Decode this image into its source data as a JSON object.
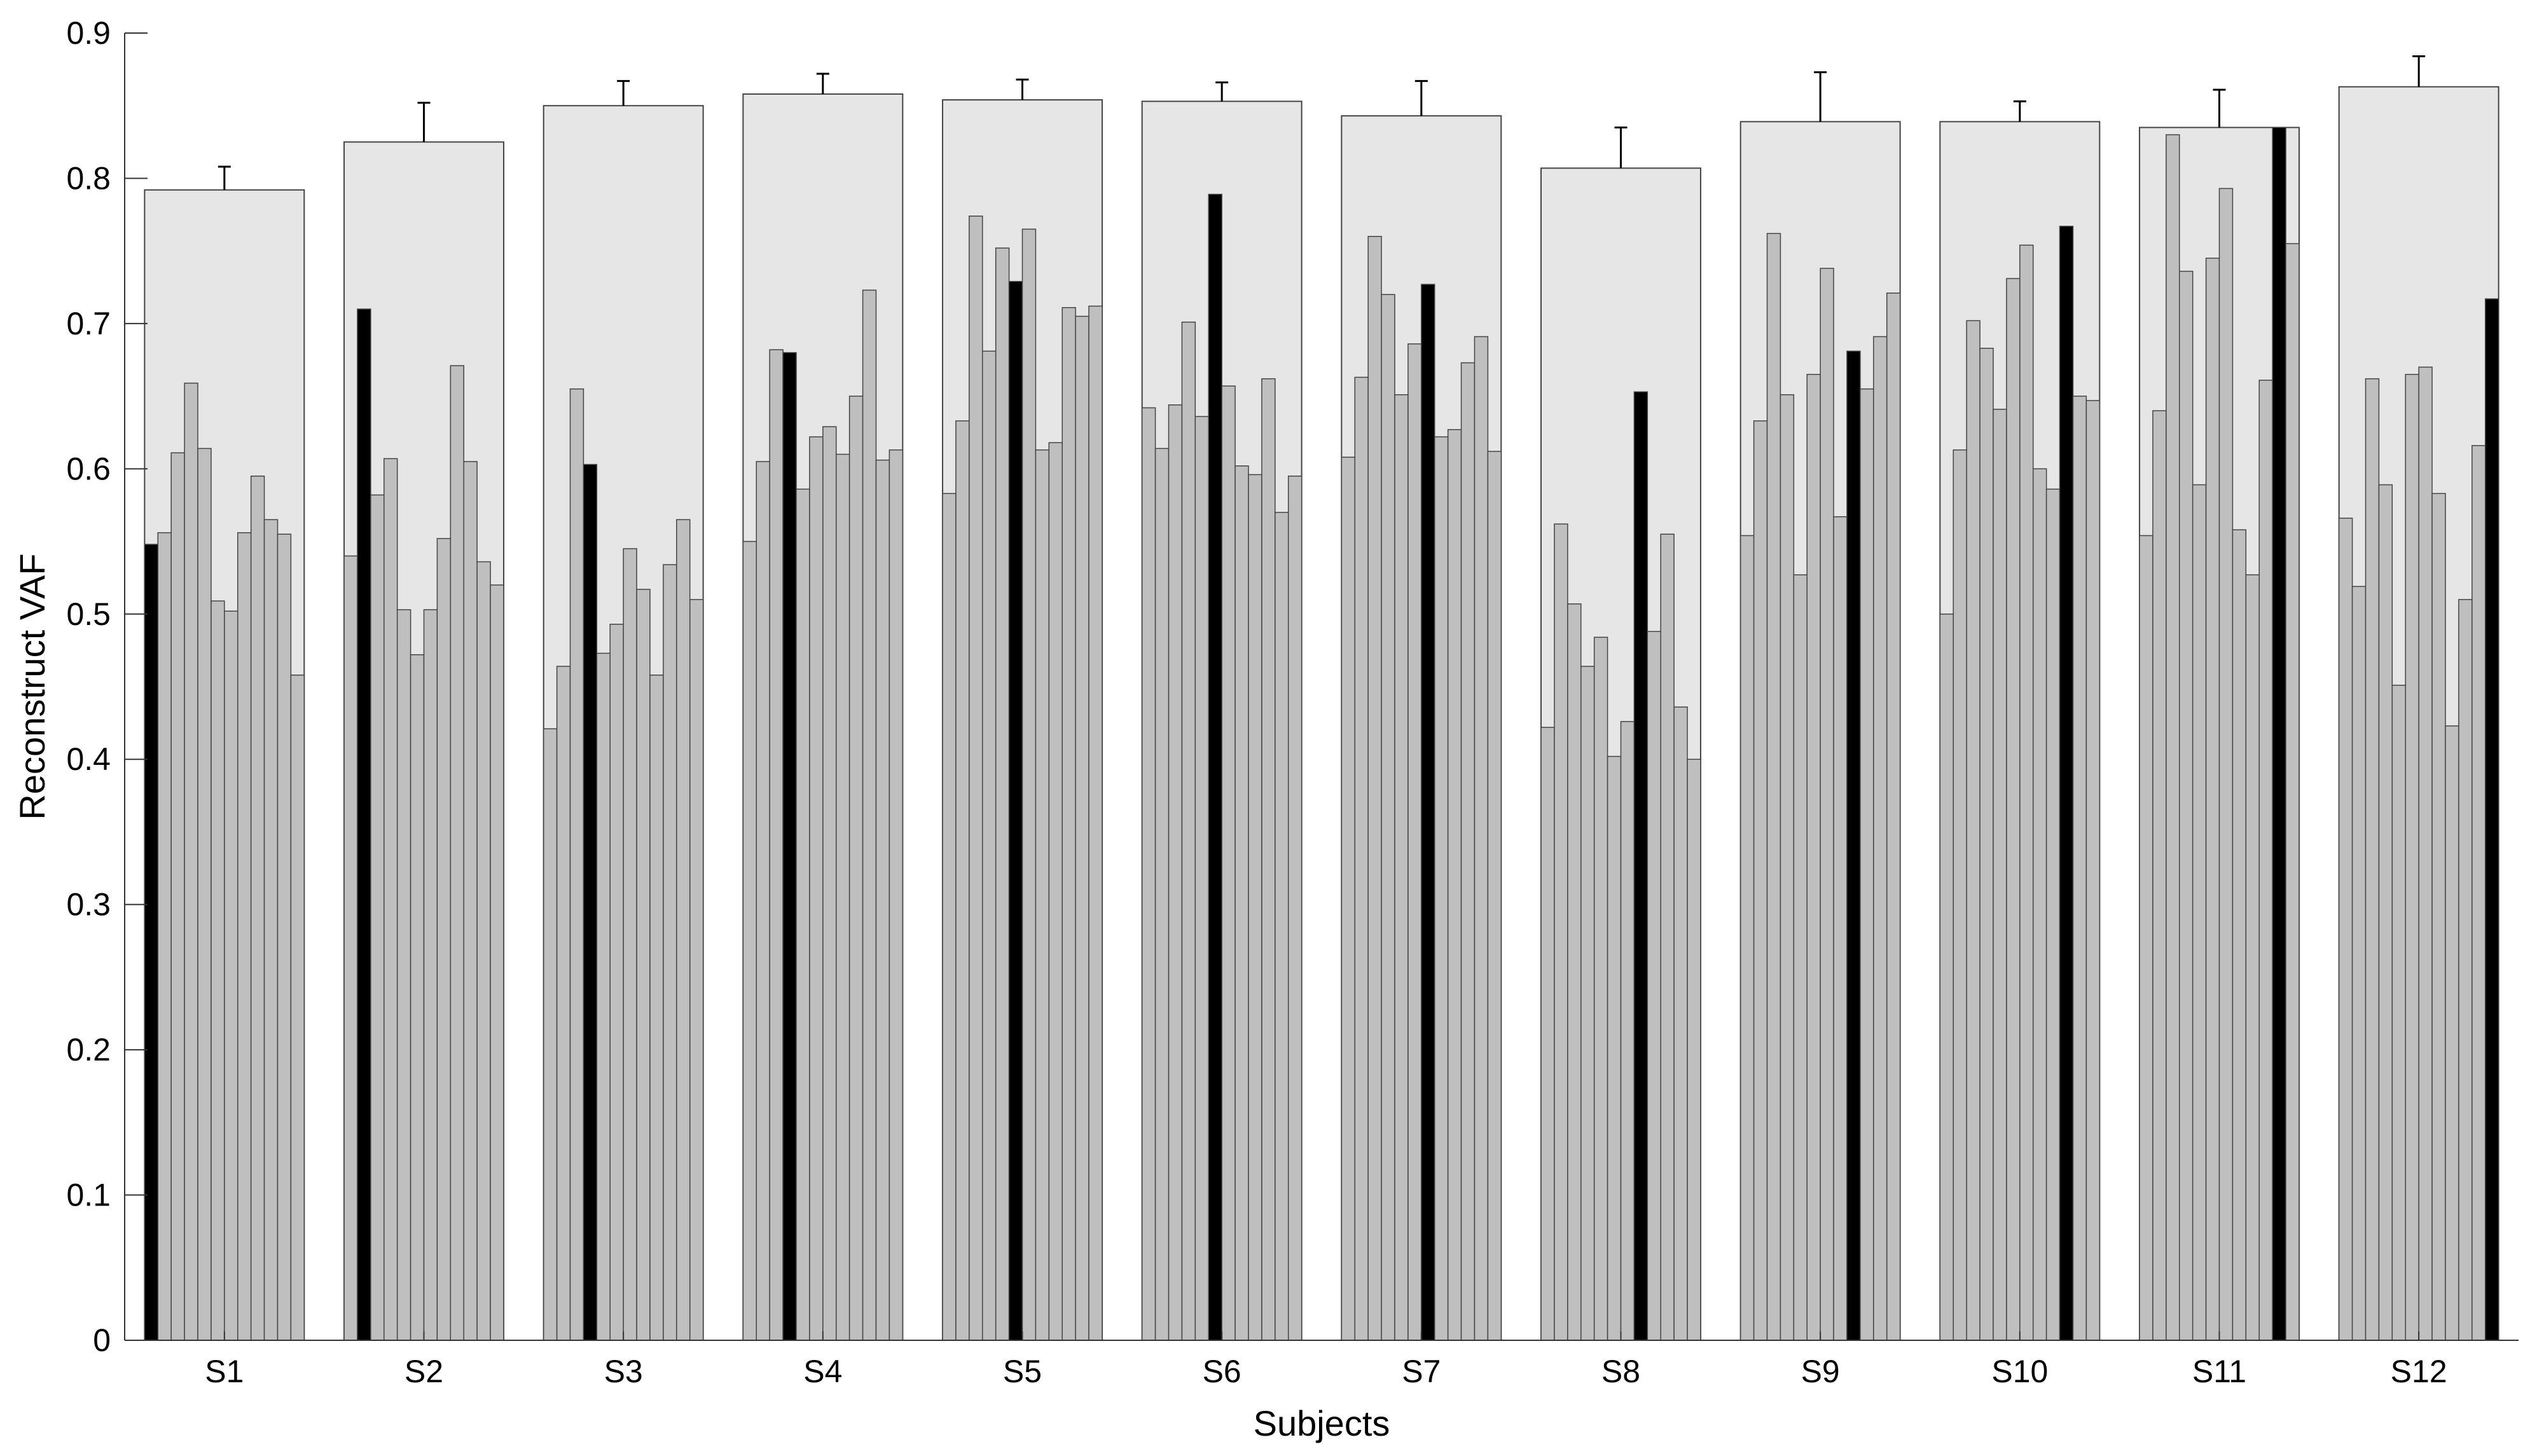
{
  "chart_data": {
    "type": "bar",
    "xlabel": "Subjects",
    "ylabel": "Reconstruct VAF",
    "ylim": [
      0,
      0.9
    ],
    "yticks": [
      "0",
      "0.1",
      "0.2",
      "0.3",
      "0.4",
      "0.5",
      "0.6",
      "0.7",
      "0.8",
      "0.9"
    ],
    "grid": false,
    "colors": {
      "mean_bar": "#e6e6e6",
      "trial_bar": "#bfbfbf",
      "best_trial": "#000000",
      "edge": "#444444"
    },
    "subjects": [
      {
        "label": "S1",
        "mean": 0.792,
        "error": 0.016,
        "highlight": 0,
        "values": [
          0.548,
          0.556,
          0.611,
          0.659,
          0.614,
          0.509,
          0.502,
          0.556,
          0.595,
          0.565,
          0.555,
          0.458
        ]
      },
      {
        "label": "S2",
        "mean": 0.825,
        "error": 0.027,
        "highlight": 1,
        "values": [
          0.54,
          0.71,
          0.582,
          0.607,
          0.503,
          0.472,
          0.503,
          0.552,
          0.671,
          0.605,
          0.536,
          0.52
        ]
      },
      {
        "label": "S3",
        "mean": 0.85,
        "error": 0.017,
        "highlight": 3,
        "values": [
          0.421,
          0.464,
          0.655,
          0.603,
          0.473,
          0.493,
          0.545,
          0.517,
          0.458,
          0.534,
          0.565,
          0.51
        ]
      },
      {
        "label": "S4",
        "mean": 0.858,
        "error": 0.014,
        "highlight": 3,
        "values": [
          0.55,
          0.605,
          0.682,
          0.68,
          0.586,
          0.622,
          0.629,
          0.61,
          0.65,
          0.723,
          0.606,
          0.613
        ]
      },
      {
        "label": "S5",
        "mean": 0.854,
        "error": 0.014,
        "highlight": 5,
        "values": [
          0.583,
          0.633,
          0.774,
          0.681,
          0.752,
          0.729,
          0.765,
          0.613,
          0.618,
          0.711,
          0.705,
          0.712
        ]
      },
      {
        "label": "S6",
        "mean": 0.853,
        "error": 0.013,
        "highlight": 5,
        "values": [
          0.642,
          0.614,
          0.644,
          0.701,
          0.636,
          0.789,
          0.657,
          0.602,
          0.596,
          0.662,
          0.57,
          0.595
        ]
      },
      {
        "label": "S7",
        "mean": 0.843,
        "error": 0.024,
        "highlight": 6,
        "values": [
          0.608,
          0.663,
          0.76,
          0.72,
          0.651,
          0.686,
          0.727,
          0.622,
          0.627,
          0.673,
          0.691,
          0.612
        ]
      },
      {
        "label": "S8",
        "mean": 0.807,
        "error": 0.028,
        "highlight": 7,
        "values": [
          0.422,
          0.562,
          0.507,
          0.464,
          0.484,
          0.402,
          0.426,
          0.653,
          0.488,
          0.555,
          0.436,
          0.4
        ]
      },
      {
        "label": "S9",
        "mean": 0.839,
        "error": 0.034,
        "highlight": 8,
        "values": [
          0.554,
          0.633,
          0.762,
          0.651,
          0.527,
          0.665,
          0.738,
          0.567,
          0.681,
          0.655,
          0.691,
          0.721
        ]
      },
      {
        "label": "S10",
        "mean": 0.839,
        "error": 0.014,
        "highlight": 9,
        "values": [
          0.5,
          0.613,
          0.702,
          0.683,
          0.641,
          0.731,
          0.754,
          0.6,
          0.586,
          0.767,
          0.65,
          0.647
        ]
      },
      {
        "label": "S11",
        "mean": 0.835,
        "error": 0.026,
        "highlight": 10,
        "values": [
          0.554,
          0.64,
          0.83,
          0.736,
          0.589,
          0.745,
          0.793,
          0.558,
          0.527,
          0.661,
          0.835,
          0.755
        ]
      },
      {
        "label": "S12",
        "mean": 0.863,
        "error": 0.021,
        "highlight": 11,
        "values": [
          0.566,
          0.519,
          0.662,
          0.589,
          0.451,
          0.665,
          0.67,
          0.583,
          0.423,
          0.51,
          0.616,
          0.717
        ]
      }
    ]
  }
}
